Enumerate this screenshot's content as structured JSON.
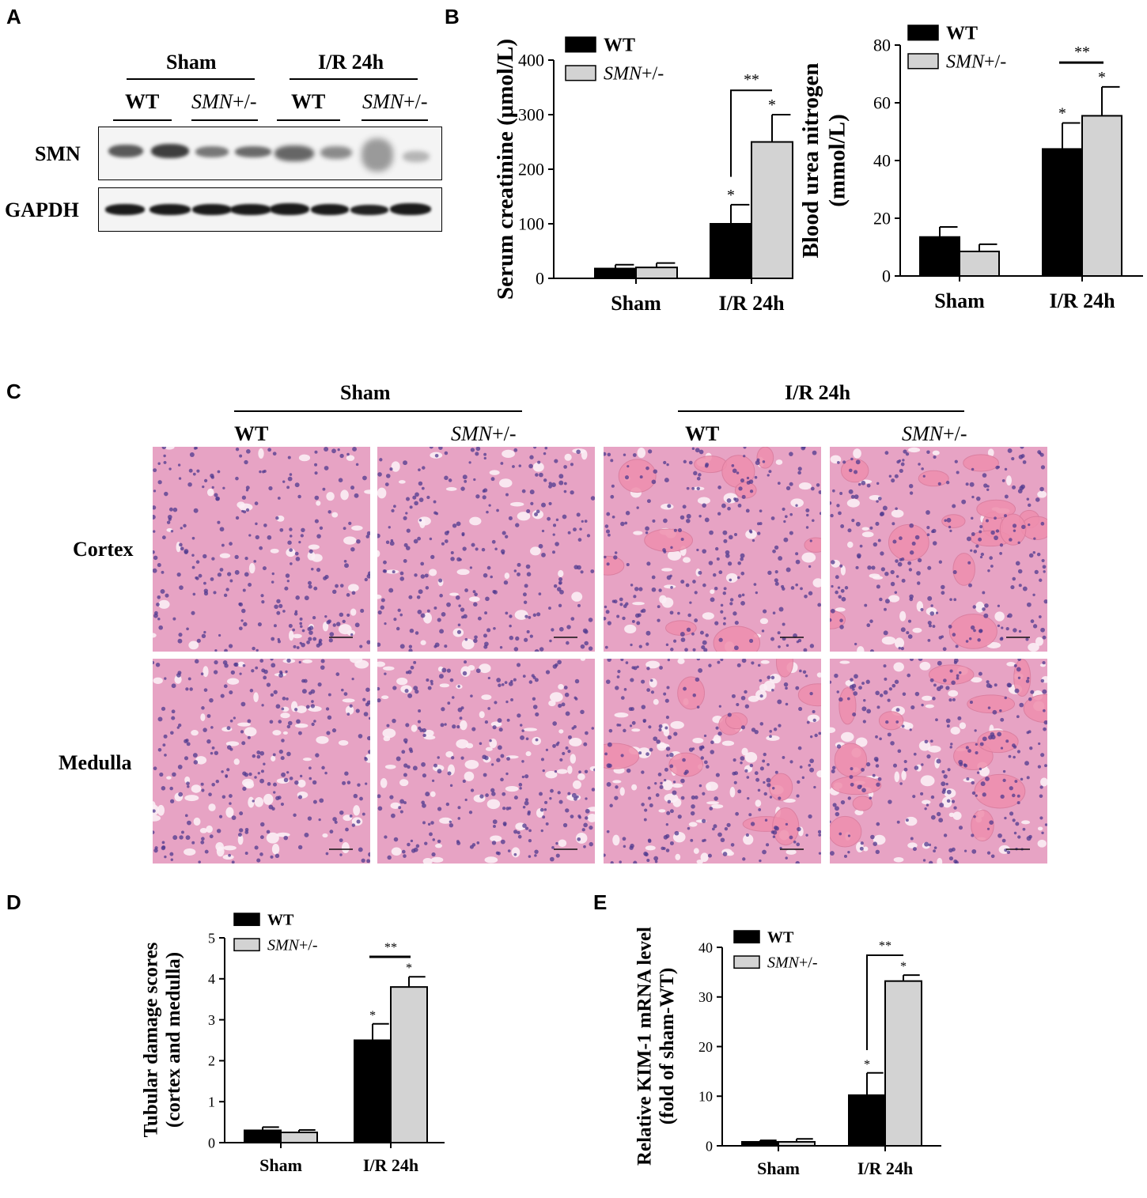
{
  "panels": {
    "A": "A",
    "B": "B",
    "C": "C",
    "D": "D",
    "E": "E"
  },
  "blot": {
    "groups": [
      "Sham",
      "I/R 24h"
    ],
    "lanes": [
      {
        "label": "WT",
        "italic": false
      },
      {
        "label": "SMN",
        "suffix": "+/-",
        "italic": true
      },
      {
        "label": "WT",
        "italic": false
      },
      {
        "label": "SMN",
        "suffix": "+/-",
        "italic": true
      }
    ],
    "rows": [
      "SMN",
      "GAPDH"
    ],
    "colors": {
      "band": "#1b1b1b"
    }
  },
  "histology": {
    "groups": [
      "Sham",
      "I/R 24h"
    ],
    "columns": [
      {
        "label": "WT",
        "suffix": ""
      },
      {
        "label": "SMN",
        "suffix": "+/-"
      },
      {
        "label": "WT",
        "suffix": ""
      },
      {
        "label": "SMN",
        "suffix": "+/-"
      }
    ],
    "rows": [
      "Cortex",
      "Medulla"
    ],
    "colors": {
      "tissue": "#e7a3c4",
      "nuclei": "#4f3a8f",
      "lumen": "#fbeef5",
      "cast": "#ef8fae"
    }
  },
  "chart_data": [
    {
      "id": "creatinine",
      "type": "bar",
      "categories": [
        "Sham",
        "I/R 24h"
      ],
      "series": [
        {
          "name": "WT",
          "values": [
            18,
            100
          ],
          "errors": [
            7,
            35
          ]
        },
        {
          "name": "SMN+/-",
          "values": [
            20,
            250
          ],
          "errors": [
            8,
            50
          ]
        }
      ],
      "ylabel": "Serum creatinine (μmol/L)",
      "ylim": [
        0,
        400
      ],
      "yticks": [
        0,
        100,
        200,
        300,
        400
      ],
      "legend": [
        "WT",
        "SMN+/-"
      ],
      "stars": [
        "*",
        "*"
      ],
      "bracket": "**"
    },
    {
      "id": "bun",
      "type": "bar",
      "categories": [
        "Sham",
        "I/R 24h"
      ],
      "series": [
        {
          "name": "WT",
          "values": [
            13.5,
            44
          ],
          "errors": [
            3.5,
            9
          ]
        },
        {
          "name": "SMN+/-",
          "values": [
            8.5,
            55.5
          ],
          "errors": [
            2.5,
            10
          ]
        }
      ],
      "ylabel": "Blood urea nitrogen (mmol/L)",
      "ylabel_lines": [
        "Blood urea nitrogen",
        "(mmol/L)"
      ],
      "ylim": [
        0,
        80
      ],
      "yticks": [
        0,
        20,
        40,
        60,
        80
      ],
      "legend": [
        "WT",
        "SMN+/-"
      ],
      "stars": [
        "*",
        "*"
      ],
      "bracket": "**"
    },
    {
      "id": "damage",
      "type": "bar",
      "categories": [
        "Sham",
        "I/R 24h"
      ],
      "series": [
        {
          "name": "WT",
          "values": [
            0.3,
            2.5
          ],
          "errors": [
            0.08,
            0.4
          ]
        },
        {
          "name": "SMN+/-",
          "values": [
            0.25,
            3.8
          ],
          "errors": [
            0.06,
            0.25
          ]
        }
      ],
      "ylabel": "Tubular damage scores (cortex and medulla)",
      "ylabel_lines": [
        "Tubular damage scores",
        "(cortex and medulla)"
      ],
      "ylim": [
        0,
        5
      ],
      "yticks": [
        0,
        1,
        2,
        3,
        4,
        5
      ],
      "legend": [
        "WT",
        "SMN+/-"
      ],
      "stars": [
        "*",
        "*"
      ],
      "bracket": "**"
    },
    {
      "id": "kim1",
      "type": "bar",
      "categories": [
        "Sham",
        "I/R 24h"
      ],
      "series": [
        {
          "name": "WT",
          "values": [
            0.8,
            10.2
          ],
          "errors": [
            0.3,
            4.5
          ]
        },
        {
          "name": "SMN+/-",
          "values": [
            0.8,
            33.2
          ],
          "errors": [
            0.6,
            1.2
          ]
        }
      ],
      "ylabel": "Relative KIM-1 mRNA level (fold of sham-WT)",
      "ylabel_lines": [
        "Relative KIM-1 mRNA level",
        "(fold of sham-WT)"
      ],
      "ylim": [
        0,
        40
      ],
      "yticks": [
        0,
        10,
        20,
        30,
        40
      ],
      "legend": [
        "WT",
        "SMN+/-"
      ],
      "stars": [
        "*",
        "*"
      ],
      "bracket": "**"
    }
  ],
  "colors": {
    "wt": "#000000",
    "smn": "#d3d3d3"
  }
}
